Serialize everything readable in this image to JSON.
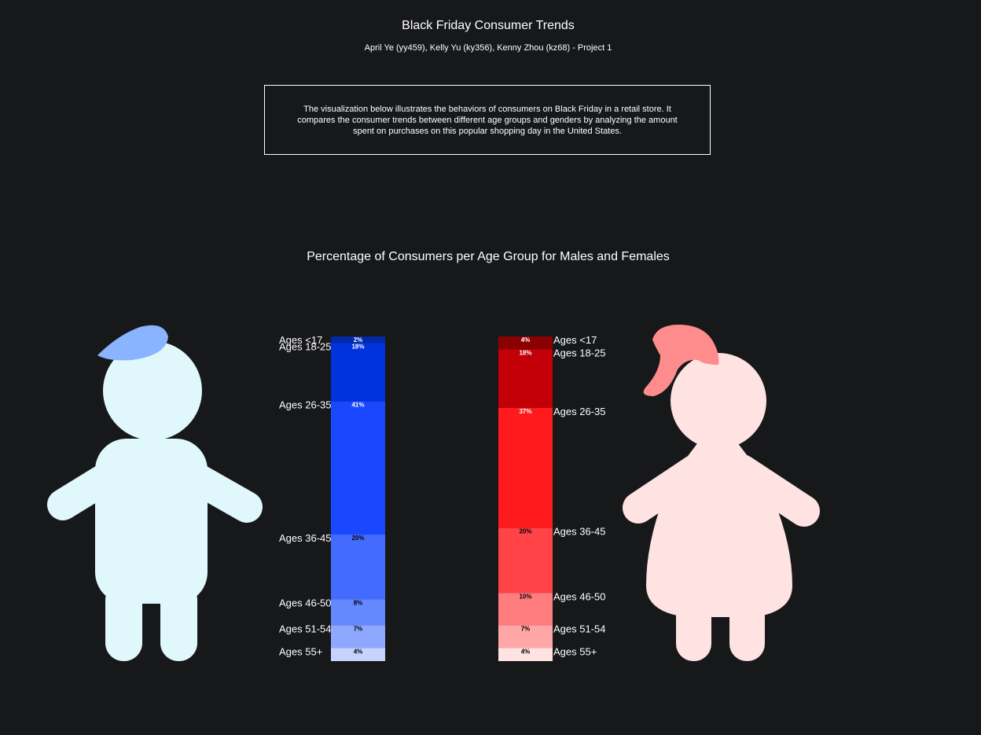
{
  "header": {
    "title": "Black Friday Consumer Trends",
    "authors": "April Ye (yy459), Kelly Yu (ky356), Kenny Zhou (kz68) - Project 1"
  },
  "description": "The visualization below illustrates the behaviors of consumers on Black Friday in a retail store. It compares the consumer trends between different age groups and genders by analyzing the amount spent on purchases on this popular shopping day in the United States.",
  "chart_data": {
    "type": "bar",
    "title": "Percentage of Consumers per Age Group for Males and Females",
    "categories": [
      "Ages <17",
      "Ages 18-25",
      "Ages 26-35",
      "Ages 36-45",
      "Ages 46-50",
      "Ages 51-54",
      "Ages 55+"
    ],
    "series": [
      {
        "name": "",
        "values": [
          2,
          18,
          41,
          20,
          8,
          7,
          4
        ],
        "labels": [
          "2%",
          "18%",
          "41%",
          "20%",
          "8%",
          "7%",
          "4%"
        ],
        "colors": [
          "#0029a8",
          "#0033dd",
          "#1a48ff",
          "#446bff",
          "#6688ff",
          "#8fa8ff",
          "#c6d3ff"
        ],
        "label_colors": [
          "#ffffff",
          "#ffffff",
          "#ffffff",
          "#000000",
          "#000000",
          "#000000",
          "#000000"
        ]
      },
      {
        "name": "",
        "values": [
          4,
          18,
          37,
          20,
          10,
          7,
          4
        ],
        "labels": [
          "4%",
          "18%",
          "37%",
          "20%",
          "10%",
          "7%",
          "4%"
        ],
        "colors": [
          "#8b0000",
          "#c30008",
          "#ff1a1d",
          "#ff4347",
          "#ff7c7f",
          "#ffa6a7",
          "#ffe3e3"
        ],
        "label_colors": [
          "#ffffff",
          "#ffffff",
          "#ffffff",
          "#000000",
          "#000000",
          "#000000",
          "#000000"
        ]
      }
    ],
    "stacked": true,
    "legend": "none",
    "grid": false
  },
  "figures": {
    "male": {
      "body_color": "#e0f7fc",
      "hair_color": "#8ab4ff"
    },
    "female": {
      "body_color": "#ffe2e2",
      "hair_color": "#ff8c8c"
    }
  }
}
